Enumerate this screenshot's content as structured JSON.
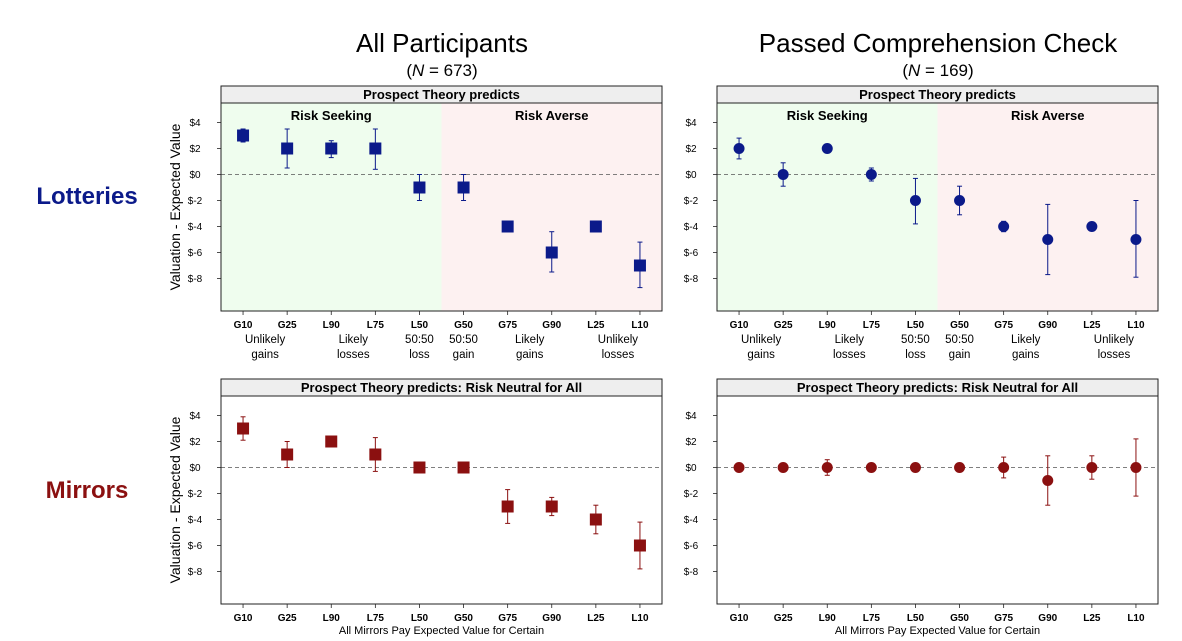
{
  "columns": [
    {
      "title": "All Participants",
      "subtitle_open": "(",
      "subtitle_var": "N",
      "subtitle_rest": " = 673)"
    },
    {
      "title": "Passed Comprehension Check",
      "subtitle_open": "(",
      "subtitle_var": "N",
      "subtitle_rest": " = 169)"
    }
  ],
  "rows": [
    {
      "label": "Lotteries",
      "color": "#0b1a8a"
    },
    {
      "label": "Mirrors",
      "color": "#8b1010"
    }
  ],
  "strip_lotteries": "Prospect Theory predicts",
  "strip_mirrors": "Prospect Theory predicts: Risk Neutral for All",
  "region_seeking": "Risk Seeking",
  "region_averse": "Risk Averse",
  "ylabel": "Valuation - Expected Value",
  "mirrors_xlabel": "All Mirrors Pay Expected Value for Certain",
  "lottery_groups": [
    {
      "lines": [
        "Unlikely",
        "gains"
      ]
    },
    {
      "lines": [
        "Likely",
        "losses"
      ]
    },
    {
      "lines": [
        "50:50",
        "loss"
      ]
    },
    {
      "lines": [
        "50:50",
        "gain"
      ]
    },
    {
      "lines": [
        "Likely",
        "gains"
      ]
    },
    {
      "lines": [
        "Unlikely",
        "losses"
      ]
    }
  ],
  "colors": {
    "lotteries": "#0b1a8a",
    "mirrors": "#8b1010",
    "seeking_bg": "#effdee",
    "averse_bg": "#fdf1f1",
    "strip_bg": "#eeeeee"
  },
  "chart_data": [
    {
      "type": "scatter",
      "panel": "lotteries-all",
      "marker": "square",
      "categories": [
        "G10",
        "G25",
        "L90",
        "L75",
        "L50",
        "G50",
        "G75",
        "G90",
        "L25",
        "L10"
      ],
      "y_ticks": [
        "$4",
        "$2",
        "$0",
        "$-2",
        "$-4",
        "$-6",
        "$-8"
      ],
      "ylim": [
        -10.5,
        5.5
      ],
      "values": [
        3,
        2,
        2,
        2,
        -1,
        -1,
        -4,
        -6,
        -4,
        -7
      ],
      "error_low": [
        2.5,
        0.5,
        1.3,
        0.4,
        -2.0,
        -2.0,
        -4.3,
        -7.5,
        -4.3,
        -8.7
      ],
      "error_high": [
        3.5,
        3.5,
        2.6,
        3.5,
        0.0,
        0.0,
        -3.6,
        -4.4,
        -3.6,
        -5.2
      ]
    },
    {
      "type": "scatter",
      "panel": "lotteries-passed",
      "marker": "circle",
      "categories": [
        "G10",
        "G25",
        "L90",
        "L75",
        "L50",
        "G50",
        "G75",
        "G90",
        "L25",
        "L10"
      ],
      "y_ticks": [
        "$4",
        "$2",
        "$0",
        "$-2",
        "$-4",
        "$-6",
        "$-8"
      ],
      "ylim": [
        -10.5,
        5.5
      ],
      "values": [
        2,
        0,
        2,
        0,
        -2,
        -2,
        -4,
        -5,
        -4,
        -5
      ],
      "error_low": [
        1.2,
        -0.9,
        1.8,
        -0.5,
        -3.8,
        -3.1,
        -4.4,
        -7.7,
        -4.3,
        -7.9
      ],
      "error_high": [
        2.8,
        0.9,
        2.2,
        0.5,
        -0.3,
        -0.9,
        -3.6,
        -2.3,
        -3.7,
        -2.0
      ]
    },
    {
      "type": "scatter",
      "panel": "mirrors-all",
      "marker": "square",
      "categories": [
        "G10",
        "G25",
        "L90",
        "L75",
        "L50",
        "G50",
        "G75",
        "G90",
        "L25",
        "L10"
      ],
      "y_ticks": [
        "$4",
        "$2",
        "$0",
        "$-2",
        "$-4",
        "$-6",
        "$-8"
      ],
      "ylim": [
        -10.5,
        5.5
      ],
      "values": [
        3,
        1,
        2,
        1,
        0,
        0,
        -3,
        -3,
        -4,
        -6
      ],
      "error_low": [
        2.1,
        0.0,
        1.6,
        -0.3,
        -0.3,
        -0.3,
        -4.3,
        -3.7,
        -5.1,
        -7.8
      ],
      "error_high": [
        3.9,
        2.0,
        2.4,
        2.3,
        0.3,
        0.3,
        -1.7,
        -2.3,
        -2.9,
        -4.2
      ]
    },
    {
      "type": "scatter",
      "panel": "mirrors-passed",
      "marker": "circle",
      "categories": [
        "G10",
        "G25",
        "L90",
        "L75",
        "L50",
        "G50",
        "G75",
        "G90",
        "L25",
        "L10"
      ],
      "y_ticks": [
        "$4",
        "$2",
        "$0",
        "$-2",
        "$-4",
        "$-6",
        "$-8"
      ],
      "ylim": [
        -10.5,
        5.5
      ],
      "values": [
        0,
        0,
        0,
        0,
        0,
        0,
        0,
        -1,
        0,
        0
      ],
      "error_low": [
        -0.2,
        -0.2,
        -0.6,
        -0.2,
        -0.2,
        -0.2,
        -0.8,
        -2.9,
        -0.9,
        -2.2
      ],
      "error_high": [
        0.2,
        0.2,
        0.6,
        0.2,
        0.2,
        0.2,
        0.8,
        0.9,
        0.9,
        2.2
      ]
    }
  ]
}
